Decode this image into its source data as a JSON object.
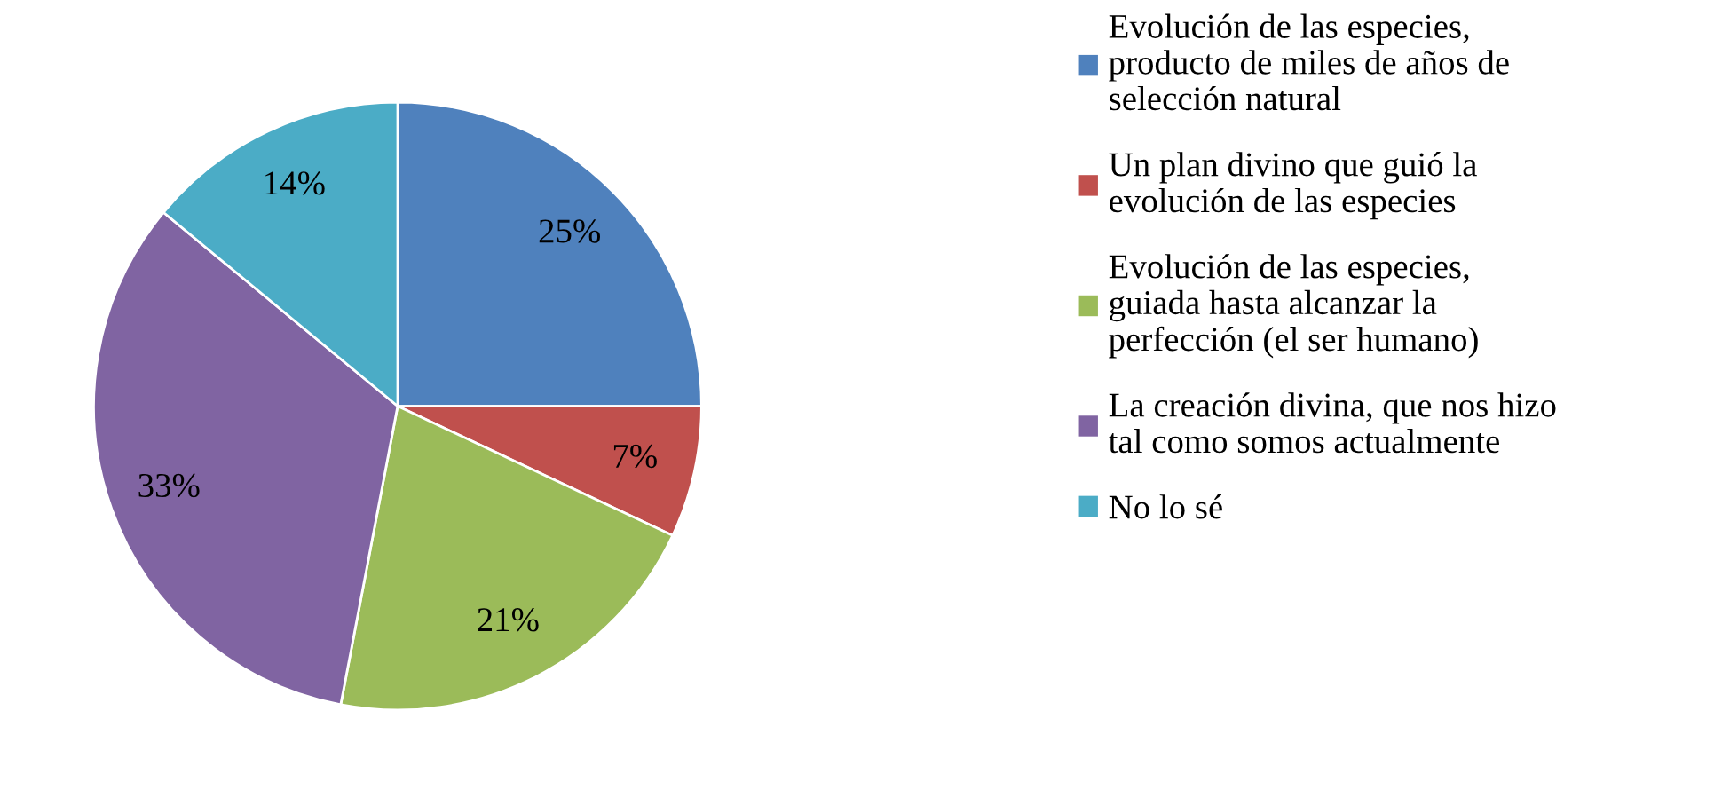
{
  "chart_data": {
    "type": "pie",
    "categories": [
      "Evolución de las especies,\nproducto de miles de años de\nselección natural",
      "Un plan divino que guió la\nevolución de las especies",
      "Evolución de las especies,\nguiada hasta alcanzar la\nperfección (el ser humano)",
      "La creación divina, que nos hizo\ntal como somos actualmente",
      "No lo sé"
    ],
    "values": [
      25,
      7,
      21,
      33,
      14
    ],
    "colors": [
      "#4f81bd",
      "#c0504d",
      "#9bbb59",
      "#8064a2",
      "#4bacc6"
    ],
    "value_labels": [
      "25%",
      "7%",
      "21%",
      "33%",
      "14%"
    ],
    "legend": "right"
  }
}
